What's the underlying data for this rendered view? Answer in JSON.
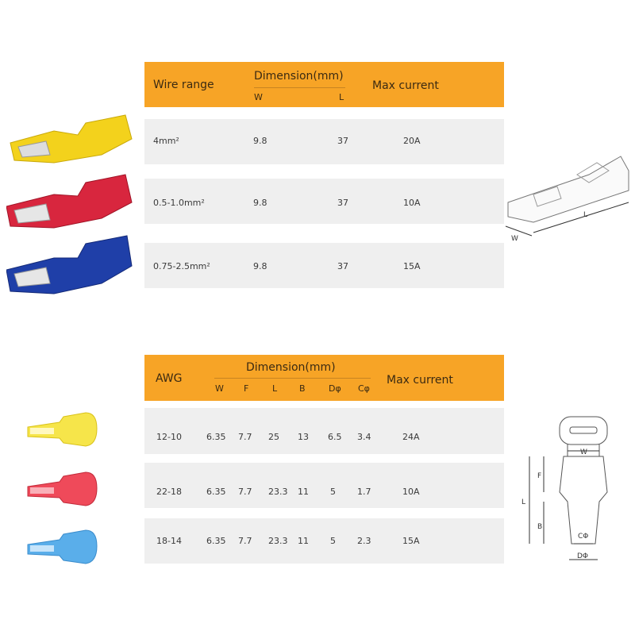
{
  "table1": {
    "headers": {
      "wire_range": "Wire range",
      "dimension": "Dimension(mm)",
      "w": "W",
      "l": "L",
      "max_current": "Max current"
    },
    "rows": [
      {
        "wire_range": "4mm²",
        "w": "9.8",
        "l": "37",
        "max_current": "20A",
        "color": "#f3d21c"
      },
      {
        "wire_range": "0.5-1.0mm²",
        "w": "9.8",
        "l": "37",
        "max_current": "10A",
        "color": "#d8263e"
      },
      {
        "wire_range": "0.75-2.5mm²",
        "w": "9.8",
        "l": "37",
        "max_current": "15A",
        "color": "#1f3fa8"
      }
    ],
    "diagram": {
      "w": "W",
      "l": "L"
    }
  },
  "table2": {
    "headers": {
      "awg": "AWG",
      "dimension": "Dimension(mm)",
      "w": "W",
      "f": "F",
      "l": "L",
      "b": "B",
      "d": "Dφ",
      "c": "Cφ",
      "max_current": "Max current"
    },
    "rows": [
      {
        "awg": "12-10",
        "w": "6.35",
        "f": "7.7",
        "l": "25",
        "b": "13",
        "d": "6.5",
        "c": "3.4",
        "max_current": "24A",
        "color": "#f6e54a"
      },
      {
        "awg": "22-18",
        "w": "6.35",
        "f": "7.7",
        "l": "23.3",
        "b": "11",
        "d": "5",
        "c": "1.7",
        "max_current": "10A",
        "color": "#ef4a5a"
      },
      {
        "awg": "18-14",
        "w": "6.35",
        "f": "7.7",
        "l": "23.3",
        "b": "11",
        "d": "5",
        "c": "2.3",
        "max_current": "15A",
        "color": "#5aaeea"
      }
    ],
    "diagram": {
      "w": "W",
      "f": "F",
      "l": "L",
      "b": "B",
      "c": "CΦ",
      "d": "DΦ"
    }
  },
  "colors": {
    "header": "#f7a426",
    "row": "#efefef"
  }
}
